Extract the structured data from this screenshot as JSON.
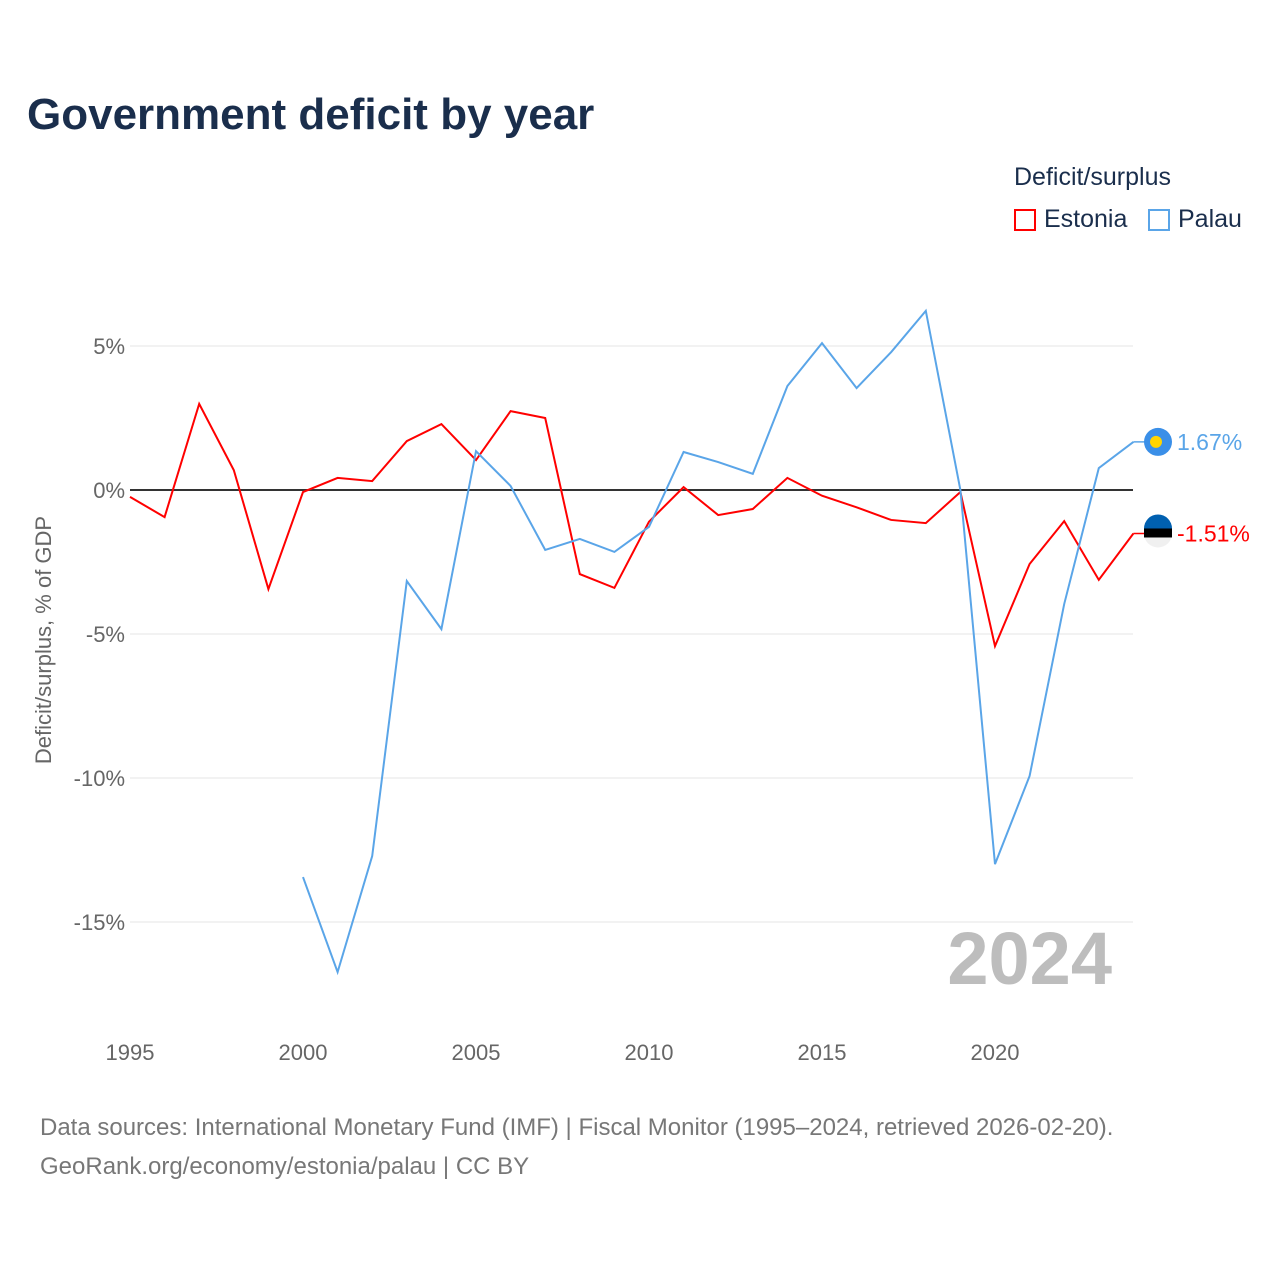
{
  "title": "Government deficit by year",
  "source_line1": "Data sources: International Monetary Fund (IMF) | Fiscal Monitor (1995–2024, retrieved 2026-02-20).",
  "source_line2": "GeoRank.org/economy/estonia/palau | CC BY",
  "chart_data": {
    "type": "line",
    "title": "Government deficit by year",
    "ylabel": "Deficit/surplus, % of GDP",
    "xlabel": "",
    "legend_title": "Deficit/surplus",
    "legend_position": "top-right",
    "year_watermark": "2024",
    "xlim": [
      1995,
      2024
    ],
    "ylim": [
      -17.5,
      8
    ],
    "xticks": [
      1995,
      2000,
      2005,
      2010,
      2015,
      2020
    ],
    "yticks": [
      {
        "v": 5,
        "label": "5%"
      },
      {
        "v": 0,
        "label": "0%"
      },
      {
        "v": -5,
        "label": "-5%"
      },
      {
        "v": -10,
        "label": "-10%"
      },
      {
        "v": -15,
        "label": "-15%"
      }
    ],
    "series": [
      {
        "name": "Estonia",
        "color": "#ff0000",
        "end_label": "-1.51%",
        "x": [
          1995,
          1996,
          1997,
          1998,
          1999,
          2000,
          2001,
          2002,
          2003,
          2004,
          2005,
          2006,
          2007,
          2008,
          2009,
          2010,
          2011,
          2012,
          2013,
          2014,
          2015,
          2016,
          2017,
          2018,
          2019,
          2020,
          2021,
          2022,
          2023,
          2024
        ],
        "values": [
          -0.24,
          -0.94,
          2.99,
          0.69,
          -3.44,
          -0.07,
          0.42,
          0.31,
          1.7,
          2.29,
          1.04,
          2.74,
          2.5,
          -2.92,
          -3.4,
          -1.1,
          0.1,
          -0.87,
          -0.66,
          0.42,
          -0.2,
          -0.6,
          -1.04,
          -1.15,
          -0.07,
          -5.42,
          -2.57,
          -1.08,
          -3.12,
          -1.51
        ]
      },
      {
        "name": "Palau",
        "color": "#5aa5e8",
        "end_label": "1.67%",
        "x": [
          2000,
          2001,
          2002,
          2003,
          2004,
          2005,
          2006,
          2007,
          2008,
          2009,
          2010,
          2011,
          2012,
          2013,
          2014,
          2015,
          2016,
          2017,
          2018,
          2019,
          2020,
          2021,
          2022,
          2023,
          2024
        ],
        "values": [
          -13.44,
          -16.74,
          -12.71,
          -3.16,
          -4.83,
          1.35,
          0.14,
          -2.08,
          -1.7,
          -2.15,
          -1.28,
          1.32,
          0.97,
          0.56,
          3.61,
          5.1,
          3.54,
          4.79,
          6.22,
          0,
          -12.99,
          -9.93,
          -3.96,
          0.76,
          1.67
        ]
      }
    ]
  }
}
